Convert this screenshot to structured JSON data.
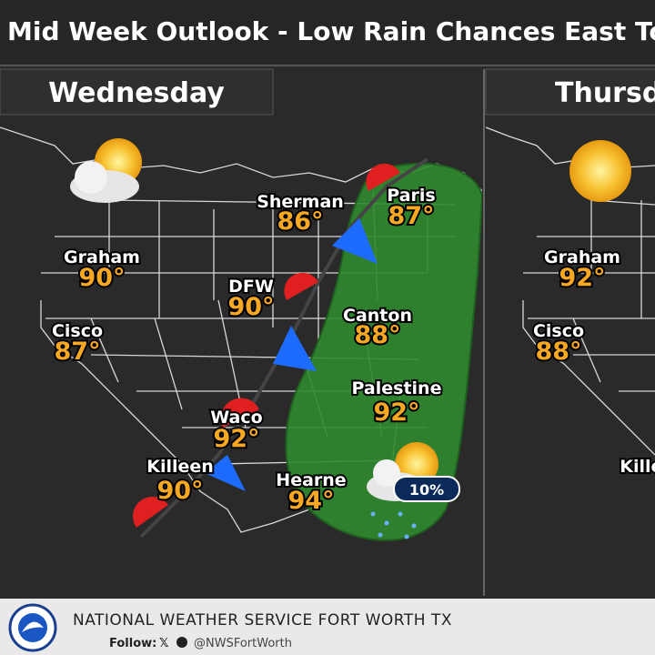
{
  "header": {
    "title": "Mid Week Outlook - Low Rain Chances East Today"
  },
  "panels": [
    {
      "day": "Wednesday",
      "cities": [
        {
          "name": "Sherman",
          "temp": "86°"
        },
        {
          "name": "Paris",
          "temp": "87°"
        },
        {
          "name": "Graham",
          "temp": "90°"
        },
        {
          "name": "DFW",
          "temp": "90°"
        },
        {
          "name": "Cisco",
          "temp": "87°"
        },
        {
          "name": "Canton",
          "temp": "88°"
        },
        {
          "name": "Palestine",
          "temp": "92°"
        },
        {
          "name": "Waco",
          "temp": "92°"
        },
        {
          "name": "Killeen",
          "temp": "90°"
        },
        {
          "name": "Hearne",
          "temp": "94°"
        }
      ],
      "rain_chance": "10%"
    },
    {
      "day": "Thursday",
      "cities": [
        {
          "name": "Graham",
          "temp": "92°"
        },
        {
          "name": "Cisco",
          "temp": "88°"
        },
        {
          "name": "Killeen"
        }
      ]
    }
  ],
  "footer": {
    "agency": "NATIONAL WEATHER SERVICE FORT WORTH TX",
    "follow_label": "Follow:",
    "handle": "@NWSFortWorth"
  }
}
